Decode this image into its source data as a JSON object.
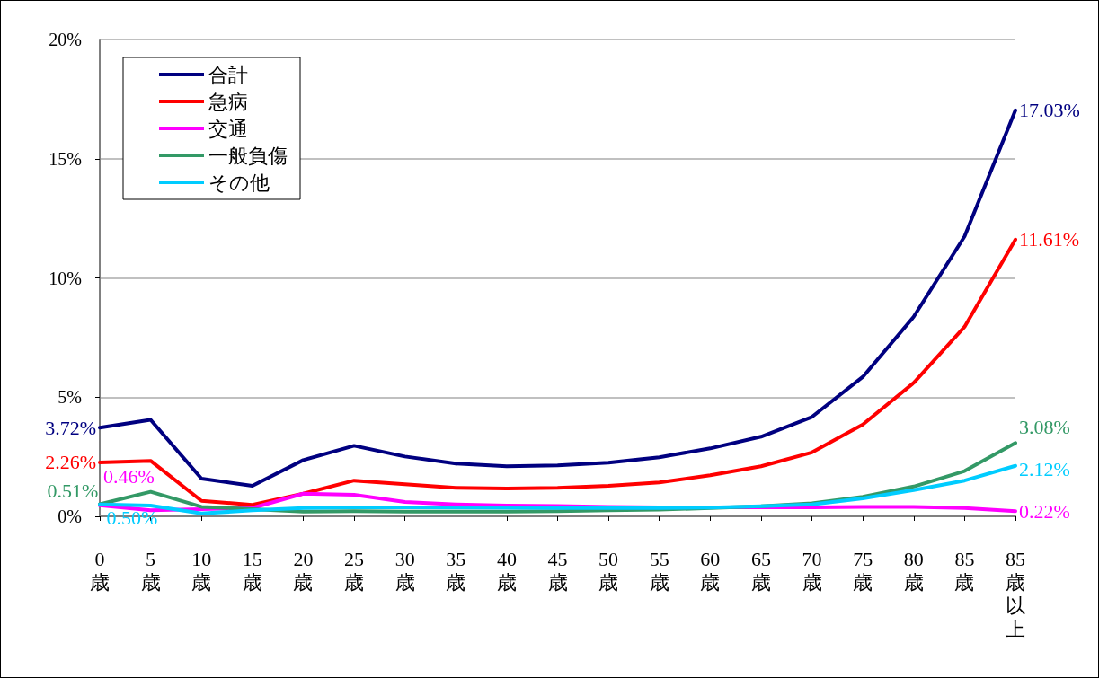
{
  "chart_data": {
    "type": "line",
    "categories": [
      "0歳",
      "5歳",
      "10歳",
      "15歳",
      "20歳",
      "25歳",
      "30歳",
      "35歳",
      "40歳",
      "45歳",
      "50歳",
      "55歳",
      "60歳",
      "65歳",
      "70歳",
      "75歳",
      "80歳",
      "85歳",
      "85歳以上"
    ],
    "ylim": [
      0,
      20
    ],
    "yticks": [
      {
        "value": 0,
        "label": "0%"
      },
      {
        "value": 5,
        "label": "5%"
      },
      {
        "value": 10,
        "label": "10%"
      },
      {
        "value": 15,
        "label": "15%"
      },
      {
        "value": 20,
        "label": "20%"
      }
    ],
    "grid": "y",
    "legend": "top left",
    "marker": "none",
    "line_style": "solid",
    "series": [
      {
        "name": "合計",
        "color": "#000080",
        "values": [
          3.72,
          4.05,
          1.58,
          1.28,
          2.36,
          2.96,
          2.51,
          2.21,
          2.1,
          2.14,
          2.25,
          2.48,
          2.85,
          3.34,
          4.17,
          5.85,
          8.37,
          11.74,
          17.03
        ],
        "value_labels": [
          "3.72%",
          null,
          null,
          null,
          null,
          null,
          null,
          null,
          null,
          null,
          null,
          null,
          null,
          null,
          null,
          null,
          null,
          null,
          "17.03%"
        ]
      },
      {
        "name": "急病",
        "color": "#ff0000",
        "values": [
          2.26,
          2.33,
          0.65,
          0.48,
          0.95,
          1.5,
          1.35,
          1.2,
          1.17,
          1.2,
          1.28,
          1.42,
          1.72,
          2.1,
          2.68,
          3.85,
          5.6,
          7.95,
          11.61
        ],
        "value_labels": [
          "2.26%",
          null,
          null,
          null,
          null,
          null,
          null,
          null,
          null,
          null,
          null,
          null,
          null,
          null,
          null,
          null,
          null,
          null,
          "11.61%"
        ]
      },
      {
        "name": "交通",
        "color": "#ff00ff",
        "values": [
          0.46,
          0.25,
          0.3,
          0.35,
          0.95,
          0.9,
          0.6,
          0.5,
          0.45,
          0.43,
          0.4,
          0.38,
          0.38,
          0.38,
          0.38,
          0.4,
          0.4,
          0.35,
          0.22
        ],
        "value_labels": [
          "0.46%",
          null,
          null,
          null,
          null,
          null,
          null,
          null,
          null,
          null,
          null,
          null,
          null,
          null,
          null,
          null,
          null,
          null,
          "0.22%"
        ]
      },
      {
        "name": "一般負傷",
        "color": "#339966",
        "values": [
          0.51,
          1.03,
          0.4,
          0.3,
          0.2,
          0.22,
          0.2,
          0.2,
          0.2,
          0.22,
          0.25,
          0.28,
          0.35,
          0.42,
          0.55,
          0.82,
          1.25,
          1.9,
          3.08
        ],
        "value_labels": [
          "0.51%",
          null,
          null,
          null,
          null,
          null,
          null,
          null,
          null,
          null,
          null,
          null,
          null,
          null,
          null,
          null,
          null,
          null,
          "3.08%"
        ]
      },
      {
        "name": "その他",
        "color": "#00ccff",
        "values": [
          0.5,
          0.45,
          0.12,
          0.25,
          0.35,
          0.38,
          0.38,
          0.37,
          0.36,
          0.35,
          0.35,
          0.35,
          0.37,
          0.42,
          0.5,
          0.75,
          1.1,
          1.5,
          2.12
        ],
        "value_labels": [
          "0.50%",
          null,
          null,
          null,
          null,
          null,
          null,
          null,
          null,
          null,
          null,
          null,
          null,
          null,
          null,
          null,
          null,
          null,
          "2.12%"
        ]
      }
    ]
  }
}
